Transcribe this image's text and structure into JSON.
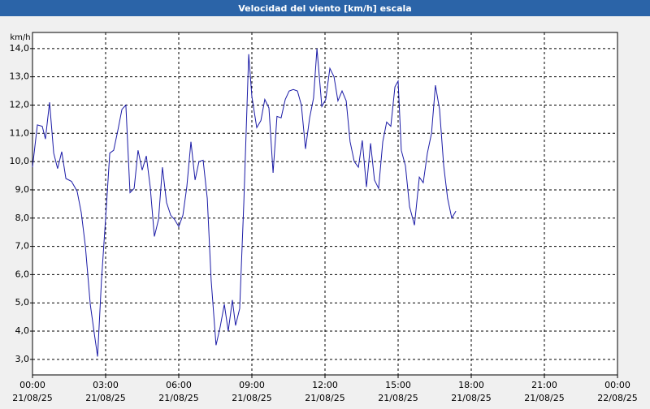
{
  "chart_data": {
    "type": "line",
    "title": "Velocidad del viento [km/h] escala",
    "ylabel": "km/h",
    "x": [
      0,
      0.2,
      0.4,
      0.53,
      0.7,
      0.87,
      1.03,
      1.2,
      1.37,
      1.6,
      1.83,
      2,
      2.17,
      2.37,
      2.53,
      2.67,
      2.83,
      3,
      3.17,
      3.33,
      3.5,
      3.67,
      3.83,
      4,
      4.17,
      4.33,
      4.5,
      4.67,
      4.83,
      5,
      5.17,
      5.33,
      5.5,
      5.67,
      5.83,
      6,
      6.17,
      6.33,
      6.5,
      6.67,
      6.83,
      7,
      7.17,
      7.33,
      7.53,
      7.7,
      7.87,
      8.03,
      8.2,
      8.33,
      8.5,
      8.67,
      8.87,
      9,
      9.2,
      9.37,
      9.53,
      9.7,
      9.87,
      10.03,
      10.2,
      10.37,
      10.53,
      10.7,
      10.87,
      11.03,
      11.2,
      11.37,
      11.53,
      11.67,
      11.87,
      12.03,
      12.2,
      12.37,
      12.53,
      12.7,
      12.87,
      13.03,
      13.2,
      13.37,
      13.53,
      13.7,
      13.87,
      14.03,
      14.2,
      14.37,
      14.53,
      14.7,
      14.87,
      15,
      15.13,
      15.3,
      15.47,
      15.67,
      15.87,
      16.03,
      16.2,
      16.37,
      16.53,
      16.7,
      16.87,
      17.03,
      17.2,
      17.37
    ],
    "series": [
      {
        "name": "Velocidad del viento",
        "color": "#1a1aa6",
        "values": [
          9.8,
          11.3,
          11.25,
          10.8,
          12.1,
          10.3,
          9.75,
          10.35,
          9.4,
          9.3,
          8.95,
          8.2,
          7.0,
          4.95,
          3.95,
          3.1,
          5.8,
          8.0,
          10.3,
          10.4,
          11.1,
          11.85,
          12.0,
          8.9,
          9.05,
          10.4,
          9.7,
          10.2,
          9.1,
          7.35,
          7.95,
          9.8,
          8.55,
          8.1,
          7.95,
          7.7,
          8.1,
          9.1,
          10.7,
          9.35,
          10.0,
          10.05,
          8.7,
          5.8,
          3.5,
          4.15,
          4.95,
          4.0,
          5.1,
          4.2,
          4.8,
          8.55,
          13.8,
          12.3,
          11.2,
          11.45,
          12.2,
          11.9,
          9.6,
          11.6,
          11.55,
          12.2,
          12.5,
          12.55,
          12.5,
          12.0,
          10.45,
          11.55,
          12.25,
          14.0,
          11.95,
          12.2,
          13.3,
          13.0,
          12.15,
          12.5,
          12.15,
          10.7,
          10.0,
          9.8,
          10.75,
          9.1,
          10.65,
          9.35,
          9.05,
          10.7,
          11.4,
          11.25,
          12.65,
          12.85,
          10.4,
          9.85,
          8.4,
          7.75,
          9.45,
          9.25,
          10.3,
          11.0,
          12.7,
          11.85,
          9.85,
          8.7,
          8.0,
          8.25
        ]
      }
    ],
    "xlim": [
      0,
      24
    ],
    "ylim": [
      2.45,
      14.57
    ],
    "xticks": [
      {
        "value": 0,
        "label": [
          "00:00",
          "21/08/25"
        ]
      },
      {
        "value": 3,
        "label": [
          "03:00",
          "21/08/25"
        ]
      },
      {
        "value": 6,
        "label": [
          "06:00",
          "21/08/25"
        ]
      },
      {
        "value": 9,
        "label": [
          "09:00",
          "21/08/25"
        ]
      },
      {
        "value": 12,
        "label": [
          "12:00",
          "21/08/25"
        ]
      },
      {
        "value": 15,
        "label": [
          "15:00",
          "21/08/25"
        ]
      },
      {
        "value": 18,
        "label": [
          "18:00",
          "21/08/25"
        ]
      },
      {
        "value": 21,
        "label": [
          "21:00",
          "21/08/25"
        ]
      },
      {
        "value": 24,
        "label": [
          "00:00",
          "22/08/25"
        ]
      }
    ],
    "yticks": [
      {
        "value": 3,
        "label": "3,0"
      },
      {
        "value": 4,
        "label": "4,0"
      },
      {
        "value": 5,
        "label": "5,0"
      },
      {
        "value": 6,
        "label": "6,0"
      },
      {
        "value": 7,
        "label": "7,0"
      },
      {
        "value": 8,
        "label": "8,0"
      },
      {
        "value": 9,
        "label": "9,0"
      },
      {
        "value": 10,
        "label": "10,0"
      },
      {
        "value": 11,
        "label": "11,0"
      },
      {
        "value": 12,
        "label": "12,0"
      },
      {
        "value": 13,
        "label": "13,0"
      },
      {
        "value": 14,
        "label": "14,0"
      }
    ],
    "grid": true
  }
}
